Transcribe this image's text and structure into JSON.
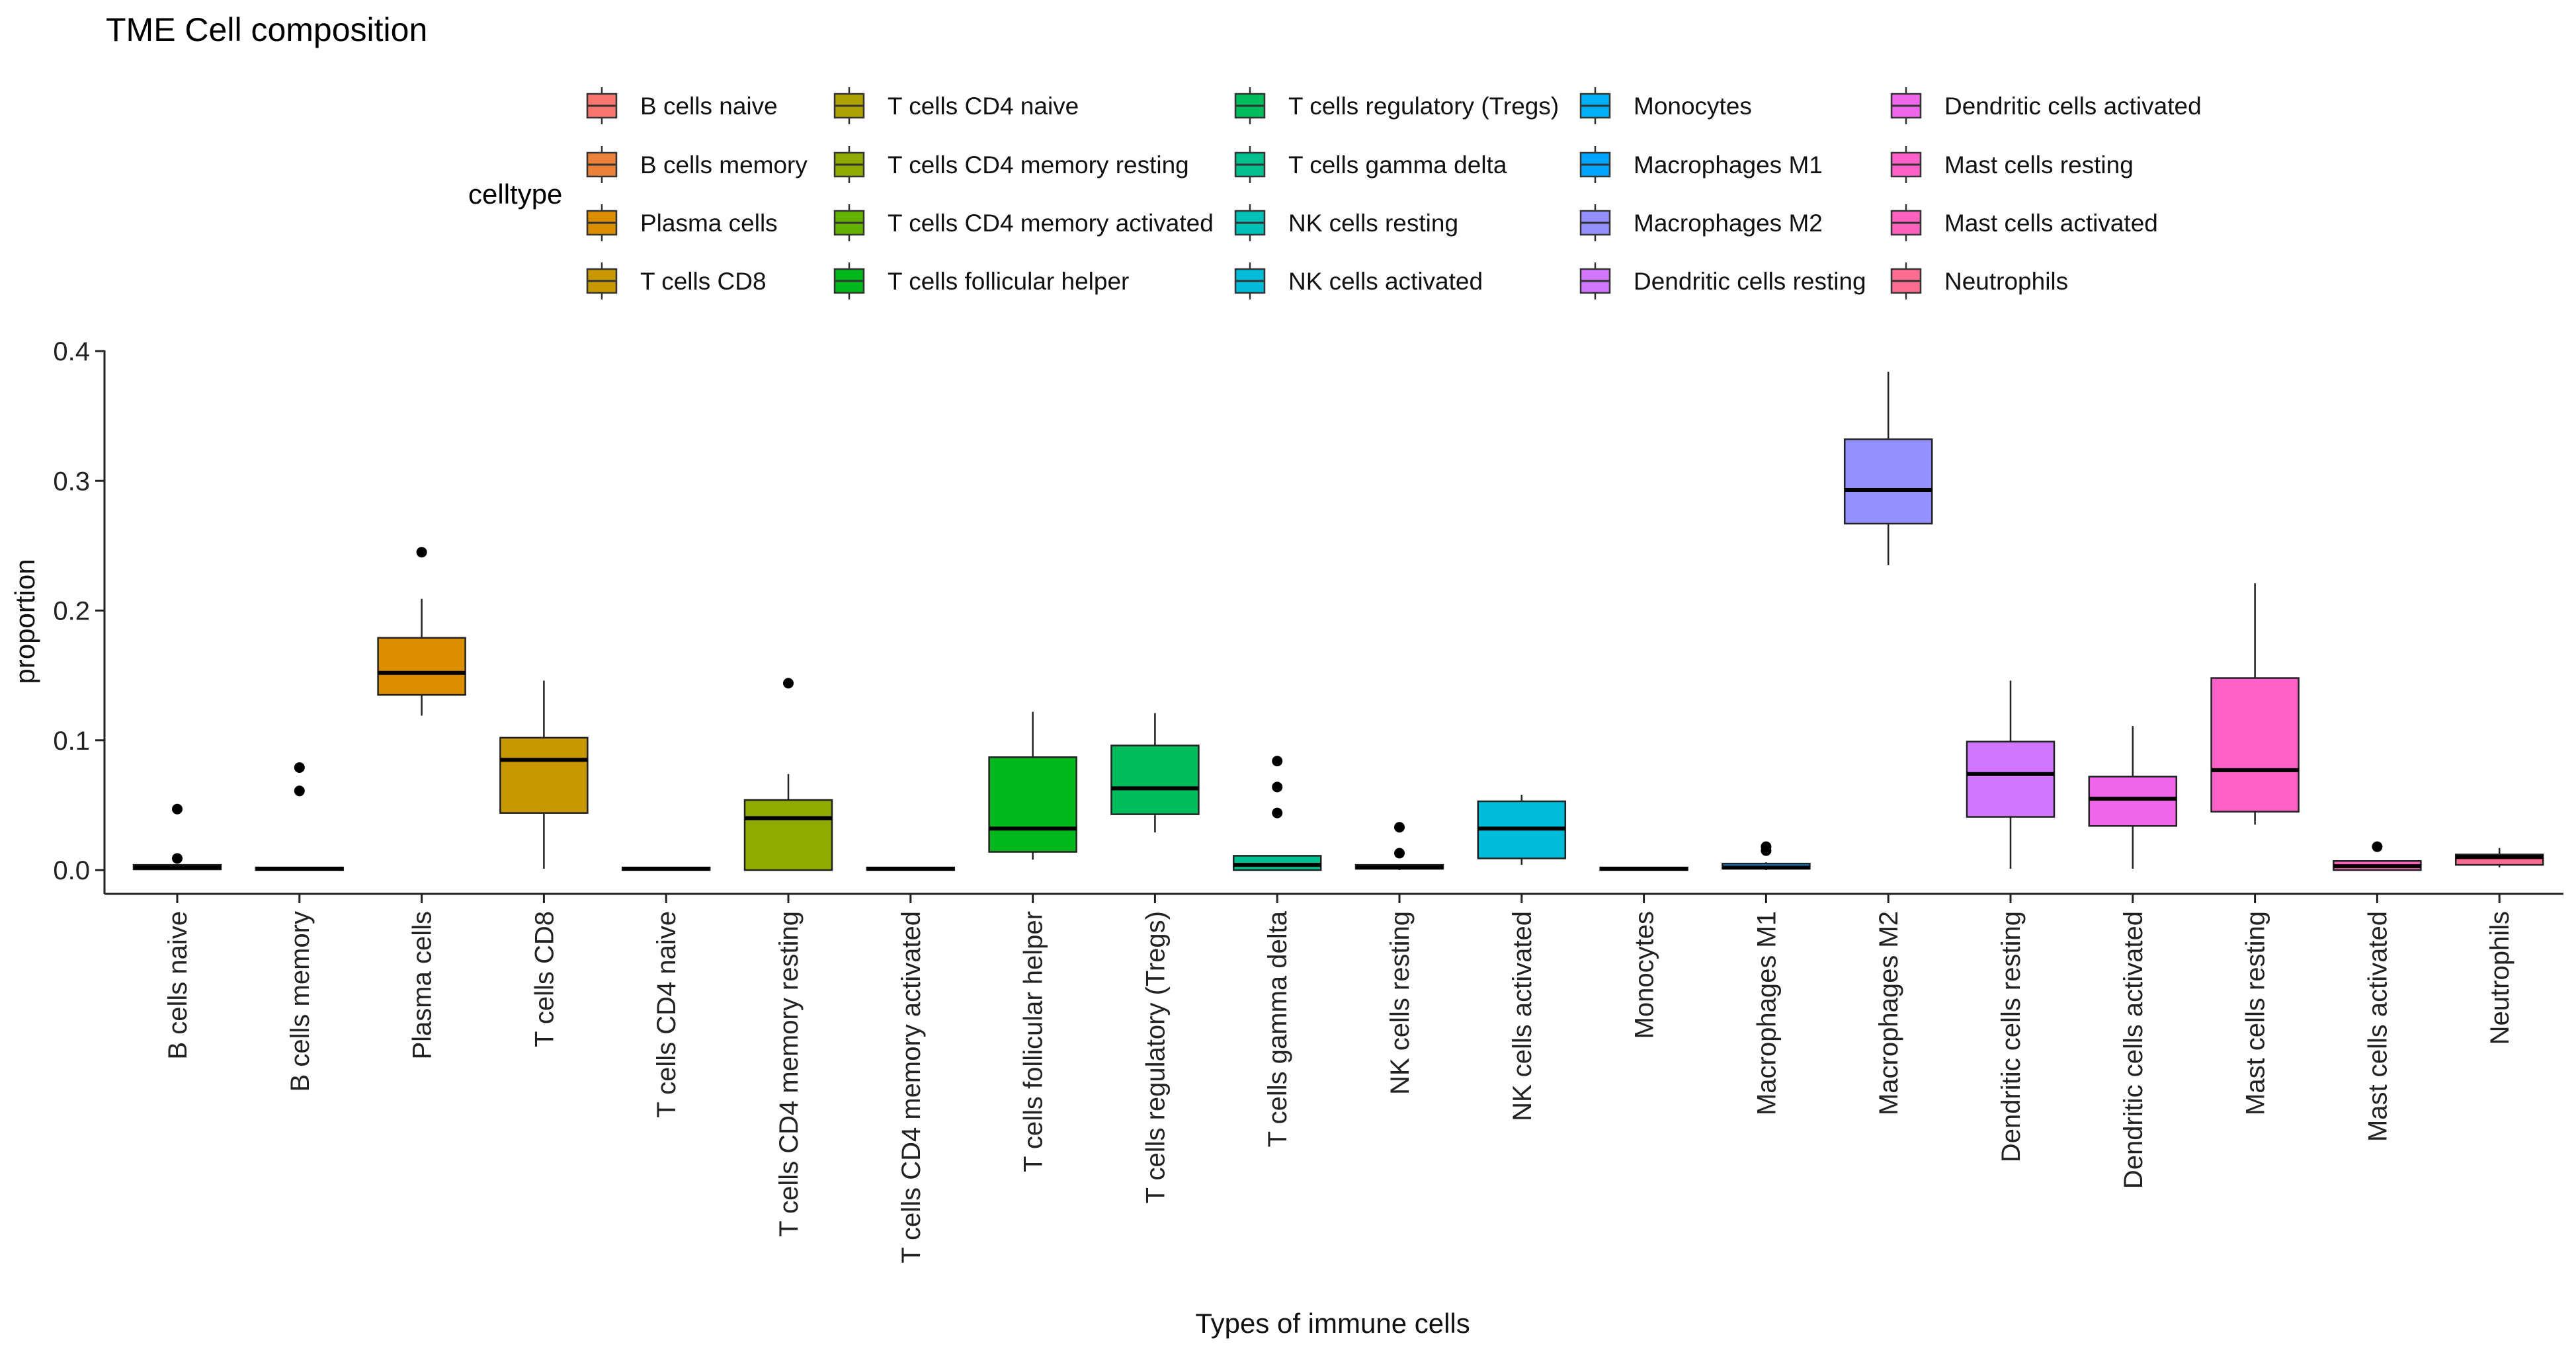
{
  "chart_data": {
    "type": "boxplot",
    "title": "TME Cell composition",
    "xlabel": "Types of immune cells",
    "ylabel": "proportion",
    "ylim": [
      -0.018,
      0.4
    ],
    "yticks": [
      0.0,
      0.1,
      0.2,
      0.3,
      0.4
    ],
    "ytick_labels": [
      "0.0",
      "0.1",
      "0.2",
      "0.3",
      "0.4"
    ],
    "legend_title": "celltype",
    "legend_position": "top",
    "categories": [
      "B cells naive",
      "B cells memory",
      "Plasma cells",
      "T cells CD8",
      "T cells CD4 naive",
      "T cells CD4 memory resting",
      "T cells CD4 memory activated",
      "T cells follicular helper",
      "T cells regulatory (Tregs)",
      "T cells gamma delta",
      "NK cells resting",
      "NK cells activated",
      "Monocytes",
      "Macrophages M1",
      "Macrophages M2",
      "Dendritic cells resting",
      "Dendritic cells activated",
      "Mast cells resting",
      "Mast cells activated",
      "Neutrophils"
    ],
    "colors": [
      "#F8766D",
      "#EC8239",
      "#DB8E00",
      "#C79800",
      "#AEA200",
      "#8FAA00",
      "#64B200",
      "#00B81B",
      "#00BD5C",
      "#00C08D",
      "#00C0B8",
      "#00BCD8",
      "#00B0F6",
      "#00A5FF",
      "#9590FF",
      "#D177FF",
      "#F066EA",
      "#FF61C9",
      "#FF62BC",
      "#FF6C91"
    ],
    "boxes": [
      {
        "q1": 0.0005,
        "median": 0.002,
        "q3": 0.004,
        "whisker_low": 0.0,
        "whisker_high": 0.004,
        "outliers": [
          0.047,
          0.009
        ]
      },
      {
        "q1": 0.0,
        "median": 0.001,
        "q3": 0.002,
        "whisker_low": 0.0,
        "whisker_high": 0.002,
        "outliers": [
          0.079,
          0.061
        ]
      },
      {
        "q1": 0.135,
        "median": 0.152,
        "q3": 0.179,
        "whisker_low": 0.119,
        "whisker_high": 0.209,
        "outliers": [
          0.245
        ]
      },
      {
        "q1": 0.044,
        "median": 0.085,
        "q3": 0.102,
        "whisker_low": 0.001,
        "whisker_high": 0.146,
        "outliers": []
      },
      {
        "q1": 0.0,
        "median": 0.001,
        "q3": 0.002,
        "whisker_low": 0.0,
        "whisker_high": 0.002,
        "outliers": []
      },
      {
        "q1": 0.0,
        "median": 0.04,
        "q3": 0.054,
        "whisker_low": 0.0,
        "whisker_high": 0.074,
        "outliers": [
          0.144
        ]
      },
      {
        "q1": 0.0,
        "median": 0.001,
        "q3": 0.002,
        "whisker_low": 0.0,
        "whisker_high": 0.002,
        "outliers": []
      },
      {
        "q1": 0.014,
        "median": 0.032,
        "q3": 0.087,
        "whisker_low": 0.008,
        "whisker_high": 0.122,
        "outliers": []
      },
      {
        "q1": 0.043,
        "median": 0.063,
        "q3": 0.096,
        "whisker_low": 0.029,
        "whisker_high": 0.121,
        "outliers": []
      },
      {
        "q1": 0.0,
        "median": 0.004,
        "q3": 0.011,
        "whisker_low": 0.0,
        "whisker_high": 0.011,
        "outliers": [
          0.084,
          0.064,
          0.044
        ]
      },
      {
        "q1": 0.001,
        "median": 0.002,
        "q3": 0.004,
        "whisker_low": 0.0,
        "whisker_high": 0.004,
        "outliers": [
          0.033,
          0.013
        ]
      },
      {
        "q1": 0.009,
        "median": 0.032,
        "q3": 0.053,
        "whisker_low": 0.004,
        "whisker_high": 0.058,
        "outliers": []
      },
      {
        "q1": 0.0,
        "median": 0.001,
        "q3": 0.002,
        "whisker_low": 0.0,
        "whisker_high": 0.002,
        "outliers": []
      },
      {
        "q1": 0.001,
        "median": 0.002,
        "q3": 0.005,
        "whisker_low": 0.0,
        "whisker_high": 0.006,
        "outliers": [
          0.018,
          0.015
        ]
      },
      {
        "q1": 0.267,
        "median": 0.293,
        "q3": 0.332,
        "whisker_low": 0.235,
        "whisker_high": 0.384,
        "outliers": []
      },
      {
        "q1": 0.041,
        "median": 0.074,
        "q3": 0.099,
        "whisker_low": 0.001,
        "whisker_high": 0.146,
        "outliers": []
      },
      {
        "q1": 0.034,
        "median": 0.055,
        "q3": 0.072,
        "whisker_low": 0.001,
        "whisker_high": 0.111,
        "outliers": []
      },
      {
        "q1": 0.045,
        "median": 0.077,
        "q3": 0.148,
        "whisker_low": 0.035,
        "whisker_high": 0.221,
        "outliers": []
      },
      {
        "q1": 0.0,
        "median": 0.003,
        "q3": 0.007,
        "whisker_low": 0.0,
        "whisker_high": 0.007,
        "outliers": [
          0.018
        ]
      },
      {
        "q1": 0.004,
        "median": 0.01,
        "q3": 0.012,
        "whisker_low": 0.002,
        "whisker_high": 0.017,
        "outliers": []
      }
    ]
  }
}
